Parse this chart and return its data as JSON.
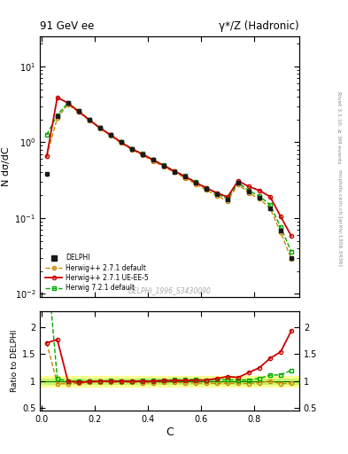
{
  "title_left": "91 GeV ee",
  "title_right": "γ*/Z (Hadronic)",
  "ylabel_main": "N dσ/dC",
  "ylabel_ratio": "Ratio to DELPHI",
  "xlabel": "C",
  "watermark": "DELPHI_1996_S3430090",
  "right_label_top": "Rivet 3.1.10, ≥ 3M events",
  "right_label_bottom": "mcplots.cern.ch [arXiv:1306.3436]",
  "delphi_x": [
    0.02,
    0.06,
    0.1,
    0.14,
    0.18,
    0.22,
    0.26,
    0.3,
    0.34,
    0.38,
    0.42,
    0.46,
    0.5,
    0.54,
    0.58,
    0.62,
    0.66,
    0.7,
    0.74,
    0.78,
    0.82,
    0.86,
    0.9,
    0.94
  ],
  "delphi_y": [
    0.38,
    2.2,
    3.3,
    2.6,
    2.0,
    1.55,
    1.25,
    1.0,
    0.82,
    0.7,
    0.585,
    0.49,
    0.41,
    0.35,
    0.29,
    0.245,
    0.205,
    0.175,
    0.29,
    0.225,
    0.185,
    0.135,
    0.068,
    0.03
  ],
  "delphi_yerr": [
    0.03,
    0.04,
    0.05,
    0.04,
    0.035,
    0.025,
    0.02,
    0.016,
    0.014,
    0.012,
    0.01,
    0.009,
    0.008,
    0.007,
    0.006,
    0.005,
    0.004,
    0.004,
    0.005,
    0.004,
    0.004,
    0.003,
    0.002,
    0.001
  ],
  "herwig271_x": [
    0.02,
    0.06,
    0.1,
    0.14,
    0.18,
    0.22,
    0.26,
    0.3,
    0.34,
    0.38,
    0.42,
    0.46,
    0.5,
    0.54,
    0.58,
    0.62,
    0.66,
    0.7,
    0.74,
    0.78,
    0.82,
    0.86,
    0.9,
    0.94
  ],
  "herwig271_y": [
    0.65,
    2.1,
    3.15,
    2.5,
    1.95,
    1.53,
    1.23,
    0.975,
    0.8,
    0.68,
    0.565,
    0.48,
    0.4,
    0.34,
    0.28,
    0.235,
    0.197,
    0.168,
    0.279,
    0.215,
    0.18,
    0.135,
    0.065,
    0.029
  ],
  "herwig271ue_x": [
    0.02,
    0.06,
    0.1,
    0.14,
    0.18,
    0.22,
    0.26,
    0.3,
    0.34,
    0.38,
    0.42,
    0.46,
    0.5,
    0.54,
    0.58,
    0.62,
    0.66,
    0.7,
    0.74,
    0.78,
    0.82,
    0.86,
    0.9,
    0.94
  ],
  "herwig271ue_y": [
    0.65,
    3.9,
    3.3,
    2.55,
    1.98,
    1.55,
    1.25,
    1.0,
    0.82,
    0.7,
    0.585,
    0.495,
    0.415,
    0.355,
    0.295,
    0.25,
    0.215,
    0.19,
    0.31,
    0.261,
    0.231,
    0.192,
    0.105,
    0.058
  ],
  "herwig721_x": [
    0.02,
    0.06,
    0.1,
    0.14,
    0.18,
    0.22,
    0.26,
    0.3,
    0.34,
    0.38,
    0.42,
    0.46,
    0.5,
    0.54,
    0.58,
    0.62,
    0.66,
    0.7,
    0.74,
    0.78,
    0.82,
    0.86,
    0.9,
    0.94
  ],
  "herwig721_y": [
    1.25,
    2.3,
    3.3,
    2.6,
    2.0,
    1.56,
    1.26,
    1.005,
    0.825,
    0.705,
    0.59,
    0.5,
    0.42,
    0.36,
    0.3,
    0.25,
    0.21,
    0.18,
    0.295,
    0.23,
    0.195,
    0.15,
    0.076,
    0.036
  ],
  "ratio_x": [
    0.02,
    0.06,
    0.1,
    0.14,
    0.18,
    0.22,
    0.26,
    0.3,
    0.34,
    0.38,
    0.42,
    0.46,
    0.5,
    0.54,
    0.58,
    0.62,
    0.66,
    0.7,
    0.74,
    0.78,
    0.82,
    0.86,
    0.9,
    0.94
  ],
  "ratio_herwig271_y": [
    1.71,
    0.955,
    0.955,
    0.962,
    0.975,
    0.987,
    0.984,
    0.975,
    0.976,
    0.971,
    0.966,
    0.98,
    0.976,
    0.971,
    0.966,
    0.959,
    0.961,
    0.96,
    0.962,
    0.956,
    0.973,
    1.0,
    0.956,
    0.967
  ],
  "ratio_herwig271ue_y": [
    1.71,
    1.77,
    1.0,
    0.981,
    0.99,
    1.0,
    1.0,
    1.0,
    1.0,
    1.0,
    1.0,
    1.01,
    1.012,
    1.014,
    1.017,
    1.02,
    1.049,
    1.086,
    1.069,
    1.16,
    1.249,
    1.422,
    1.544,
    1.933
  ],
  "ratio_herwig721_y": [
    3.29,
    1.045,
    1.0,
    1.0,
    1.0,
    1.006,
    1.008,
    1.005,
    1.006,
    1.007,
    1.009,
    1.02,
    1.024,
    1.029,
    1.034,
    1.02,
    1.025,
    1.029,
    1.017,
    1.022,
    1.054,
    1.111,
    1.118,
    1.2
  ],
  "color_delphi": "#1a1a1a",
  "color_herwig271": "#cc8800",
  "color_herwig271ue": "#cc0000",
  "color_herwig721": "#00aa00",
  "ylim_main": [
    0.009,
    25
  ],
  "ylim_ratio": [
    0.45,
    2.3
  ],
  "xlim": [
    -0.005,
    0.97
  ]
}
